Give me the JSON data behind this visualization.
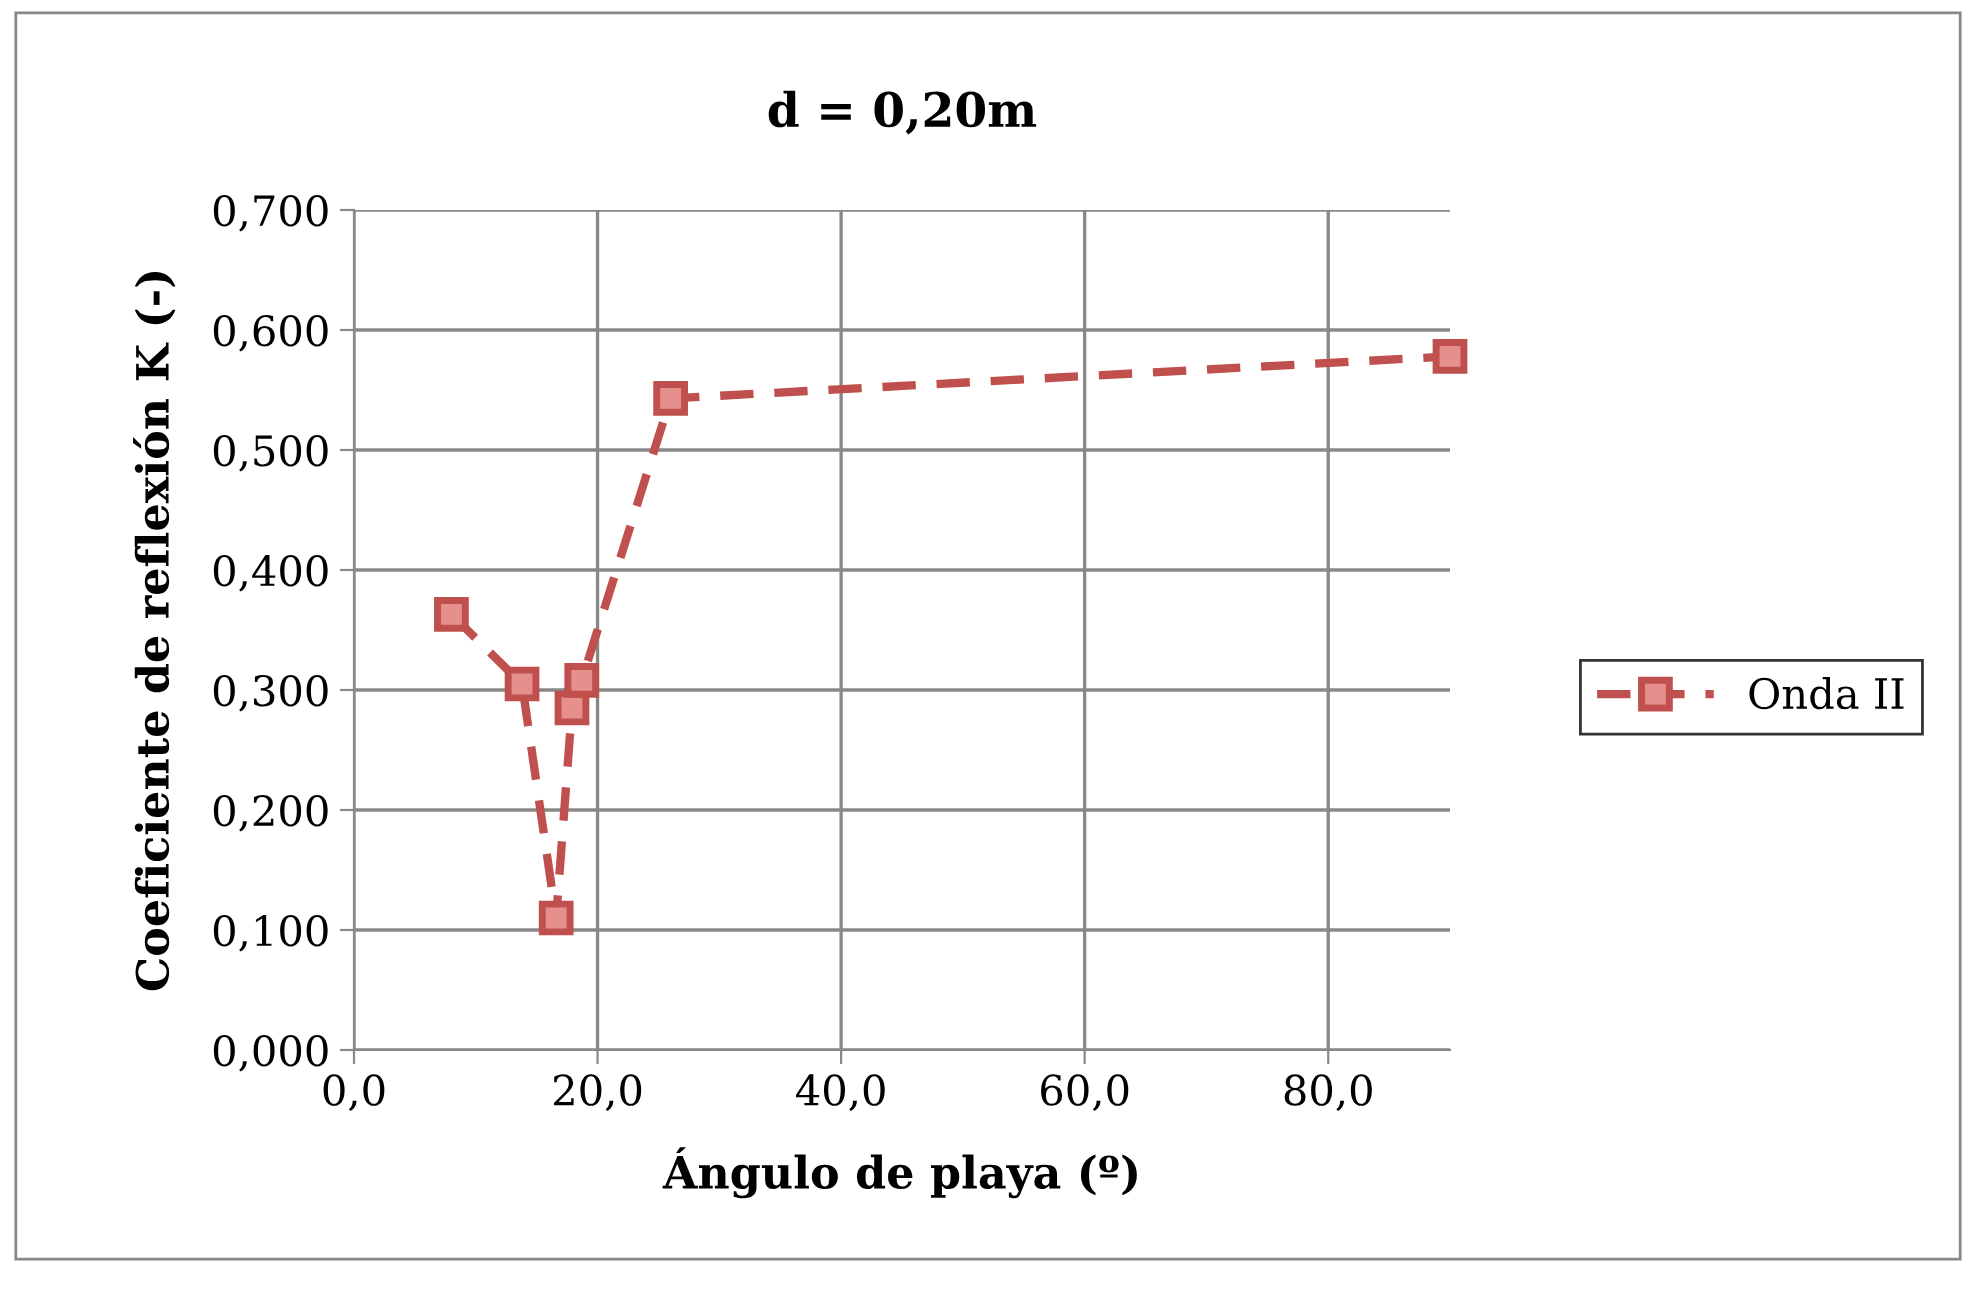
{
  "chart_data": {
    "type": "line",
    "title": "d = 0,20m",
    "xlabel": "Ángulo de playa (º)",
    "ylabel": "Coeficiente de reflexión K (-)",
    "x": [
      8.0,
      13.8,
      16.6,
      17.9,
      18.7,
      26.0,
      90.0
    ],
    "series": [
      {
        "name": "Onda II",
        "color": "#c0504d",
        "values": [
          0.363,
          0.305,
          0.11,
          0.285,
          0.308,
          0.543,
          0.578
        ]
      }
    ],
    "xlim": [
      0,
      90
    ],
    "xticks": [
      {
        "value": 0,
        "label": "0,0"
      },
      {
        "value": 20,
        "label": "20,0"
      },
      {
        "value": 40,
        "label": "40,0"
      },
      {
        "value": 60,
        "label": "60,0"
      },
      {
        "value": 80,
        "label": "80,0"
      }
    ],
    "ylim": [
      0,
      0.7
    ],
    "yticks": [
      {
        "value": 0,
        "label": "0,000"
      },
      {
        "value": 0.1,
        "label": "0,100"
      },
      {
        "value": 0.2,
        "label": "0,200"
      },
      {
        "value": 0.3,
        "label": "0,300"
      },
      {
        "value": 0.4,
        "label": "0,400"
      },
      {
        "value": 0.5,
        "label": "0,500"
      },
      {
        "value": 0.6,
        "label": "0,600"
      },
      {
        "value": 0.7,
        "label": "0,700"
      }
    ],
    "grid": true,
    "legend": "right",
    "marker": "square",
    "line_style": "dashed"
  }
}
